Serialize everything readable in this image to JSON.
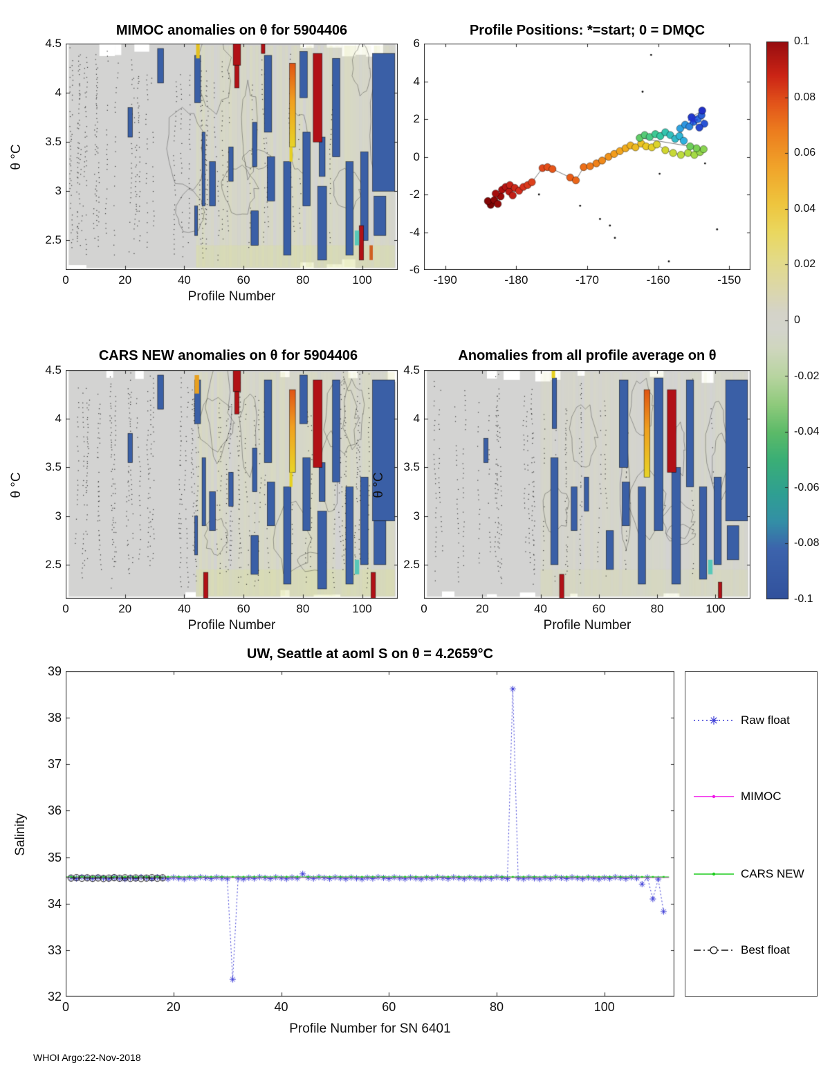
{
  "figure": {
    "footer": "WHOI Argo:22-Nov-2018"
  },
  "colorbar": {
    "vmin": -0.1,
    "vmax": 0.1,
    "tick_labels": [
      "0.1",
      "0.08",
      "0.06",
      "0.04",
      "0.02",
      "0",
      "-0.02",
      "-0.04",
      "-0.06",
      "-0.08",
      "-0.1"
    ],
    "stops": [
      {
        "v": -0.1,
        "c": "#31519c"
      },
      {
        "v": -0.082,
        "c": "#3c63ac"
      },
      {
        "v": -0.072,
        "c": "#338fa6"
      },
      {
        "v": -0.062,
        "c": "#2f9f92"
      },
      {
        "v": -0.05,
        "c": "#3aae76"
      },
      {
        "v": -0.04,
        "c": "#5cba68"
      },
      {
        "v": -0.03,
        "c": "#8fca7c"
      },
      {
        "v": -0.02,
        "c": "#b7d4a0"
      },
      {
        "v": -0.01,
        "c": "#cfd6be"
      },
      {
        "v": -0.003,
        "c": "#d3d4cc"
      },
      {
        "v": 0.003,
        "c": "#d4d3c8"
      },
      {
        "v": 0.012,
        "c": "#dcd7a8"
      },
      {
        "v": 0.022,
        "c": "#e3da86"
      },
      {
        "v": 0.032,
        "c": "#ead75e"
      },
      {
        "v": 0.042,
        "c": "#eec53e"
      },
      {
        "v": 0.055,
        "c": "#f0a42a"
      },
      {
        "v": 0.068,
        "c": "#ec7d1e"
      },
      {
        "v": 0.078,
        "c": "#e2541a"
      },
      {
        "v": 0.088,
        "c": "#cb2415"
      },
      {
        "v": 0.1,
        "c": "#970d10"
      }
    ]
  },
  "chart_data": [
    {
      "id": "mimoc",
      "type": "heatmap",
      "title": "MIMOC anomalies on θ  for 5904406",
      "xlabel": "Profile Number",
      "ylabel": "θ  °C",
      "xlim": [
        0,
        112
      ],
      "ylim": [
        2.2,
        4.5
      ],
      "xticks": [
        0,
        20,
        40,
        60,
        80,
        100
      ],
      "yticks": [
        2.5,
        3,
        3.5,
        4,
        4.5
      ],
      "tint_from": 44,
      "tint_alpha": 1,
      "dot_curves": 34,
      "dot_xmax": 62,
      "seed": 11,
      "blue": "#3a5fa6",
      "red": "#b11116",
      "blue_bars": [
        [
          21,
          22.5,
          3.55,
          3.85
        ],
        [
          31,
          33,
          4.1,
          4.45
        ],
        [
          43.5,
          45.5,
          3.9,
          4.38
        ],
        [
          43.5,
          44.5,
          2.55,
          2.85
        ],
        [
          46,
          47,
          2.85,
          3.6
        ],
        [
          48.5,
          50.5,
          2.85,
          3.3
        ],
        [
          55,
          56.5,
          3.1,
          3.45
        ],
        [
          62.5,
          65,
          2.45,
          2.8
        ],
        [
          63,
          64.5,
          3.25,
          3.7
        ],
        [
          67,
          69.5,
          3.6,
          4.38
        ],
        [
          68,
          70.5,
          2.9,
          3.35
        ],
        [
          73.5,
          76,
          2.35,
          3.3
        ],
        [
          79,
          81.5,
          3.95,
          4.42
        ],
        [
          80,
          82.5,
          2.85,
          3.6
        ],
        [
          85,
          88,
          2.3,
          3.05
        ],
        [
          85.5,
          87.5,
          3.15,
          3.55
        ],
        [
          90,
          92.5,
          3.35,
          4.35
        ],
        [
          94.5,
          97,
          2.35,
          3.3
        ],
        [
          99.5,
          102,
          2.5,
          3.4
        ],
        [
          103.5,
          111,
          3.0,
          4.4
        ],
        [
          104,
          108,
          2.55,
          2.95
        ]
      ],
      "red_bars": [
        [
          56.5,
          59,
          4.28,
          4.5
        ],
        [
          57,
          58.5,
          4.05,
          4.28
        ],
        [
          66,
          67.2,
          4.4,
          4.5
        ],
        [
          83.5,
          86.5,
          3.5,
          4.4
        ],
        [
          99,
          100.5,
          2.3,
          2.65
        ]
      ],
      "grad_bars": [
        [
          75.5,
          77.5,
          3.45,
          4.3
        ]
      ],
      "cells": [
        [
          44,
          45.2,
          4.35,
          4.5,
          "#e3c020"
        ],
        [
          97.5,
          99,
          2.45,
          2.6,
          "#58c8b8"
        ],
        [
          102.5,
          103.6,
          2.3,
          2.45,
          "#d06020"
        ],
        [
          75.5,
          76.5,
          3.3,
          3.45,
          "#e6d020"
        ]
      ]
    },
    {
      "id": "positions",
      "type": "scatter",
      "title": "Profile Positions: *=start; 0 = DMQC",
      "xlim": [
        -193,
        -147
      ],
      "ylim": [
        -6,
        6
      ],
      "xticks": [
        -190,
        -180,
        -170,
        -160,
        -150
      ],
      "yticks": [
        -6,
        -4,
        -2,
        0,
        2,
        4,
        6
      ],
      "track_colormap": [
        {
          "v": 0,
          "c": "#7a0403"
        },
        {
          "v": 0.1,
          "c": "#b01010"
        },
        {
          "v": 0.2,
          "c": "#d5301e"
        },
        {
          "v": 0.3,
          "c": "#ea5c18"
        },
        {
          "v": 0.42,
          "c": "#f3a01c"
        },
        {
          "v": 0.52,
          "c": "#e8cf24"
        },
        {
          "v": 0.6,
          "c": "#b5de40"
        },
        {
          "v": 0.68,
          "c": "#6fce59"
        },
        {
          "v": 0.76,
          "c": "#35c8a0"
        },
        {
          "v": 0.84,
          "c": "#2fb2e0"
        },
        {
          "v": 0.92,
          "c": "#2d6de0"
        },
        {
          "v": 1,
          "c": "#2230c8"
        }
      ],
      "track": [
        [
          -183.6,
          -2.55
        ],
        [
          -184.0,
          -2.35
        ],
        [
          -183.1,
          -2.3
        ],
        [
          -182.6,
          -2.5
        ],
        [
          -182.2,
          -2.1
        ],
        [
          -182.9,
          -1.95
        ],
        [
          -182.0,
          -1.75
        ],
        [
          -181.5,
          -1.6
        ],
        [
          -181.0,
          -1.85
        ],
        [
          -180.5,
          -2.05
        ],
        [
          -180.9,
          -1.5
        ],
        [
          -180.2,
          -1.65
        ],
        [
          -179.6,
          -1.8
        ],
        [
          -179.0,
          -1.6
        ],
        [
          -178.4,
          -1.5
        ],
        [
          -177.8,
          -1.35
        ],
        [
          -176.3,
          -0.6
        ],
        [
          -175.6,
          -0.55
        ],
        [
          -174.9,
          -0.65
        ],
        [
          -172.4,
          -1.1
        ],
        [
          -171.6,
          -1.25
        ],
        [
          -170.5,
          -0.55
        ],
        [
          -169.6,
          -0.5
        ],
        [
          -168.7,
          -0.35
        ],
        [
          -167.9,
          -0.2
        ],
        [
          -167.0,
          0.0
        ],
        [
          -166.2,
          0.15
        ],
        [
          -165.4,
          0.3
        ],
        [
          -164.6,
          0.45
        ],
        [
          -163.9,
          0.6
        ],
        [
          -163.2,
          0.5
        ],
        [
          -162.4,
          0.7
        ],
        [
          -161.7,
          0.55
        ],
        [
          -160.9,
          0.5
        ],
        [
          -160.2,
          0.65
        ],
        [
          -159.0,
          0.35
        ],
        [
          -157.9,
          0.2
        ],
        [
          -156.8,
          0.1
        ],
        [
          -155.8,
          0.2
        ],
        [
          -154.9,
          0.1
        ],
        [
          -154.1,
          0.25
        ],
        [
          -153.6,
          0.4
        ],
        [
          -154.6,
          0.45
        ],
        [
          -155.5,
          0.55
        ],
        [
          -162.6,
          1.0
        ],
        [
          -161.9,
          1.15
        ],
        [
          -161.2,
          1.05
        ],
        [
          -160.4,
          1.2
        ],
        [
          -159.7,
          1.1
        ],
        [
          -159.0,
          1.3
        ],
        [
          -158.3,
          1.15
        ],
        [
          -157.6,
          0.95
        ],
        [
          -157.0,
          1.1
        ],
        [
          -156.4,
          0.85
        ],
        [
          -156.9,
          1.5
        ],
        [
          -156.2,
          1.7
        ],
        [
          -155.6,
          1.6
        ],
        [
          -155.0,
          1.85
        ],
        [
          -154.4,
          2.0
        ],
        [
          -153.9,
          2.2
        ],
        [
          -153.5,
          1.75
        ],
        [
          -154.2,
          1.55
        ],
        [
          -155.3,
          2.1
        ],
        [
          -153.8,
          2.45
        ]
      ],
      "start_marker": [
        -155.1,
        1.95
      ],
      "small_dots": [
        [
          -161.0,
          5.4
        ],
        [
          -162.2,
          3.45
        ],
        [
          -168.2,
          -3.3
        ],
        [
          -166.8,
          -3.65
        ],
        [
          -166.1,
          -4.3
        ],
        [
          -158.5,
          -5.55
        ],
        [
          -151.7,
          -3.85
        ],
        [
          -171.0,
          -2.6
        ],
        [
          -176.8,
          -2.0
        ],
        [
          -159.8,
          -0.9
        ],
        [
          -153.4,
          -0.35
        ]
      ]
    },
    {
      "id": "cars",
      "type": "heatmap",
      "title": "CARS NEW anomalies on θ for 5904406",
      "xlabel": "Profile Number",
      "ylabel": "θ  °C",
      "xlim": [
        0,
        112
      ],
      "ylim": [
        2.15,
        4.5
      ],
      "xticks": [
        0,
        20,
        40,
        60,
        80,
        100
      ],
      "yticks": [
        2.5,
        3,
        3.5,
        4,
        4.5
      ],
      "tint_from": 44,
      "tint_alpha": 1,
      "dot_curves": 46,
      "dot_xmax": 62,
      "seed": 23,
      "blue": "#3a5fa6",
      "red": "#b11116",
      "blue_bars": [
        [
          21,
          22.5,
          3.55,
          3.85
        ],
        [
          31,
          33,
          4.1,
          4.45
        ],
        [
          43.5,
          45.5,
          3.95,
          4.4
        ],
        [
          43.5,
          44.5,
          2.6,
          3.0
        ],
        [
          46,
          47.2,
          2.9,
          3.6
        ],
        [
          48.5,
          50.5,
          2.85,
          3.25
        ],
        [
          55,
          56.5,
          3.1,
          3.45
        ],
        [
          62.5,
          65,
          2.4,
          2.8
        ],
        [
          63,
          64.5,
          3.25,
          3.7
        ],
        [
          67,
          69.5,
          3.55,
          4.4
        ],
        [
          68,
          70.5,
          2.9,
          3.35
        ],
        [
          73.5,
          76,
          2.3,
          3.3
        ],
        [
          79,
          81.5,
          3.95,
          4.45
        ],
        [
          80,
          82.5,
          2.85,
          3.6
        ],
        [
          85,
          88,
          2.25,
          3.05
        ],
        [
          85.5,
          87.5,
          3.15,
          3.55
        ],
        [
          90,
          92.5,
          3.35,
          4.4
        ],
        [
          94.5,
          97,
          2.3,
          3.3
        ],
        [
          99.5,
          102,
          2.5,
          3.4
        ],
        [
          103.5,
          111,
          2.95,
          4.4
        ],
        [
          104,
          108,
          2.5,
          2.95
        ]
      ],
      "red_bars": [
        [
          56.5,
          59,
          4.28,
          4.5
        ],
        [
          57,
          58.5,
          4.05,
          4.28
        ],
        [
          83.5,
          86.5,
          3.5,
          4.4
        ],
        [
          46.5,
          48,
          2.15,
          2.42
        ],
        [
          103,
          104.5,
          2.15,
          2.42
        ]
      ],
      "grad_bars": [
        [
          75.5,
          77.5,
          3.45,
          4.3
        ]
      ],
      "cells": [
        [
          43.5,
          45,
          4.26,
          4.45,
          "#e8a020"
        ],
        [
          97.5,
          99,
          2.4,
          2.55,
          "#58c8b8"
        ],
        [
          75.5,
          76.5,
          3.3,
          3.45,
          "#e6d020"
        ]
      ]
    },
    {
      "id": "avg",
      "type": "heatmap",
      "title": "Anomalies from all profile average on θ",
      "xlabel": "Profile Number",
      "ylabel": "θ  °C",
      "xlim": [
        0,
        112
      ],
      "ylim": [
        2.15,
        4.5
      ],
      "xticks": [
        0,
        20,
        40,
        60,
        80,
        100
      ],
      "yticks": [
        2.5,
        3,
        3.5,
        4,
        4.5
      ],
      "tint_from": 40,
      "tint_alpha": 0.55,
      "dot_curves": 26,
      "dot_xmax": 58,
      "seed": 37,
      "blue": "#3a5fa6",
      "red": "#b11116",
      "blue_bars": [
        [
          20.5,
          22,
          3.55,
          3.8
        ],
        [
          43.5,
          46,
          2.5,
          3.6
        ],
        [
          44,
          45.5,
          3.9,
          4.42
        ],
        [
          50.5,
          52.5,
          2.85,
          3.3
        ],
        [
          55,
          56.5,
          3.05,
          3.4
        ],
        [
          62.5,
          65,
          2.45,
          2.85
        ],
        [
          67,
          70,
          3.5,
          4.4
        ],
        [
          68,
          70.5,
          2.9,
          3.35
        ],
        [
          73.5,
          76,
          2.3,
          3.3
        ],
        [
          79,
          82,
          2.85,
          4.42
        ],
        [
          85,
          88,
          2.3,
          3.5
        ],
        [
          90,
          92.5,
          3.3,
          4.4
        ],
        [
          94.5,
          97,
          2.35,
          3.3
        ],
        [
          99.5,
          102,
          2.5,
          3.4
        ],
        [
          103.5,
          111,
          2.95,
          4.4
        ],
        [
          104,
          108,
          2.55,
          2.9
        ]
      ],
      "red_bars": [
        [
          46.5,
          48,
          2.15,
          2.4
        ],
        [
          83.5,
          86.5,
          3.45,
          4.3
        ],
        [
          101,
          102.2,
          2.15,
          2.32
        ]
      ],
      "grad_bars": [
        [
          75.5,
          77.5,
          3.4,
          4.3
        ]
      ],
      "cells": [
        [
          97.5,
          99,
          2.4,
          2.55,
          "#58c8b8"
        ],
        [
          43.8,
          45,
          4.42,
          4.5,
          "#e6d020"
        ]
      ]
    },
    {
      "id": "salinity",
      "type": "line",
      "title": "UW, Seattle at aoml S on θ = 4.2659°C",
      "xlabel": "Profile Number for SN 6401",
      "ylabel": "Salinity",
      "xlim": [
        0,
        113
      ],
      "ylim": [
        32,
        39
      ],
      "xticks": [
        0,
        20,
        40,
        60,
        80,
        100
      ],
      "yticks": [
        32,
        33,
        34,
        35,
        36,
        37,
        38,
        39
      ],
      "series": [
        {
          "name": "Raw float",
          "color": "#3a3ad6",
          "style": "dotted",
          "marker": "asterisk",
          "base": 34.55,
          "profile_range": [
            1,
            111
          ],
          "anomalies": {
            "31": 32.37,
            "44": 34.64,
            "83": 38.62,
            "107": 34.42,
            "109": 34.1,
            "111": 33.83
          }
        },
        {
          "name": "MIMOC",
          "color": "#f018e8",
          "style": "solid",
          "marker": "dot",
          "value": 34.565,
          "profile_range": [
            0,
            112
          ]
        },
        {
          "name": "CARS NEW",
          "color": "#1ecc1e",
          "style": "solid",
          "marker": "dot",
          "value": 34.575,
          "profile_range": [
            0,
            112
          ]
        },
        {
          "name": "Best float",
          "color": "#111111",
          "style": "dashdot",
          "marker": "circle",
          "value": 34.55,
          "profile_range": [
            1,
            18
          ]
        }
      ]
    }
  ]
}
